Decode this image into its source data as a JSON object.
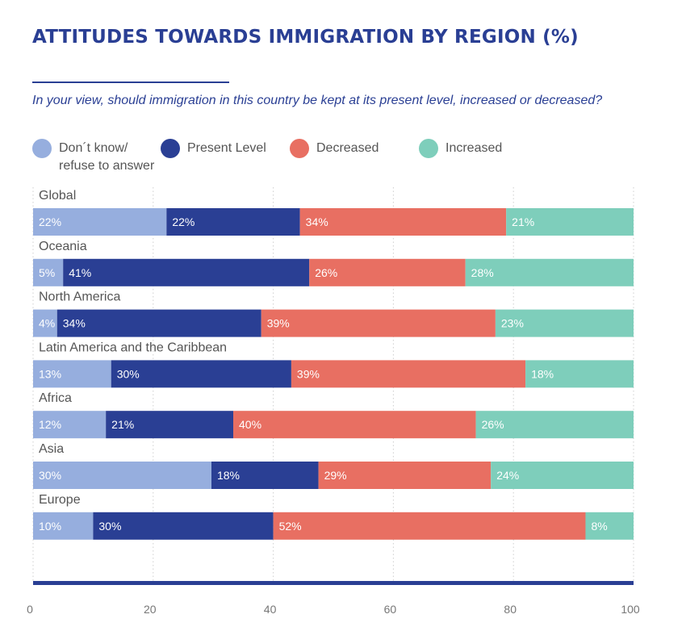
{
  "title": "ATTITUDES TOWARDS IMMIGRATION BY REGION (%)",
  "subtitle": "In your view, should immigration in this country be kept at its present level, increased or decreased?",
  "chart_data": {
    "type": "bar",
    "orientation": "horizontal-stacked",
    "categories": [
      "Global",
      "Oceania",
      "North America",
      "Latin America and the Caribbean",
      "Africa",
      "Asia",
      "Europe"
    ],
    "series": [
      {
        "name": "Don´t know/\nrefuse to answer",
        "color": "#96aede",
        "values": [
          22,
          5,
          4,
          13,
          12,
          30,
          10
        ]
      },
      {
        "name": "Present Level",
        "color": "#2a3f94",
        "values": [
          22,
          41,
          34,
          30,
          21,
          18,
          30
        ]
      },
      {
        "name": "Decreased",
        "color": "#e86f62",
        "values": [
          34,
          26,
          39,
          39,
          40,
          29,
          52
        ]
      },
      {
        "name": "Increased",
        "color": "#7ecebb",
        "values": [
          21,
          28,
          23,
          18,
          26,
          24,
          8
        ]
      }
    ],
    "xlim": [
      0,
      100
    ],
    "xticks": [
      0,
      20,
      40,
      60,
      80,
      100
    ],
    "value_suffix": "%",
    "grid": "vertical dotted",
    "legend_position": "top"
  }
}
